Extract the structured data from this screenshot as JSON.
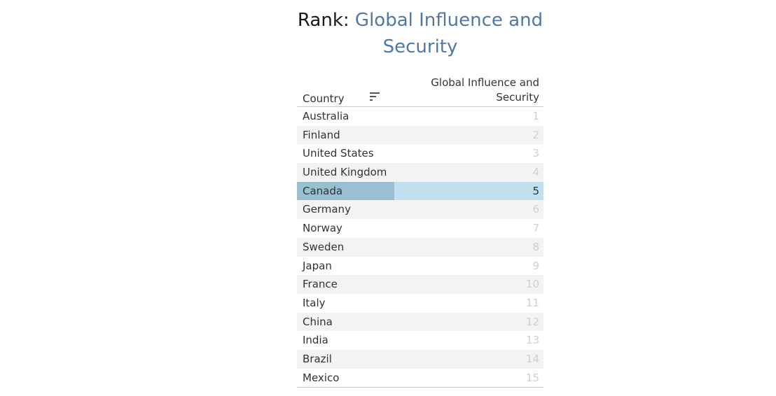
{
  "title": {
    "prefix": "Rank: ",
    "measure": "Global Influence and Security"
  },
  "table": {
    "column_header_dim": "Country",
    "column_header_measure": "Global Influence and Security",
    "sort_icon": "sort-descending-icon",
    "selected_country": "Canada"
  },
  "colors": {
    "title_measure": "#4e79a7",
    "selected_row": "#c1e0ee",
    "selected_cell": "#98bfd2",
    "rank_text": "#cfcfcf"
  },
  "chart_data": {
    "type": "table",
    "title": "Rank: Global Influence and Security",
    "columns": [
      "Country",
      "Global Influence and Security"
    ],
    "rows": [
      {
        "country": "Australia",
        "rank": 1
      },
      {
        "country": "Finland",
        "rank": 2
      },
      {
        "country": "United States",
        "rank": 3
      },
      {
        "country": "United Kingdom",
        "rank": 4
      },
      {
        "country": "Canada",
        "rank": 5
      },
      {
        "country": "Germany",
        "rank": 6
      },
      {
        "country": "Norway",
        "rank": 7
      },
      {
        "country": "Sweden",
        "rank": 8
      },
      {
        "country": "Japan",
        "rank": 9
      },
      {
        "country": "France",
        "rank": 10
      },
      {
        "country": "Italy",
        "rank": 11
      },
      {
        "country": "China",
        "rank": 12
      },
      {
        "country": "India",
        "rank": 13
      },
      {
        "country": "Brazil",
        "rank": 14
      },
      {
        "country": "Mexico",
        "rank": 15
      }
    ]
  }
}
